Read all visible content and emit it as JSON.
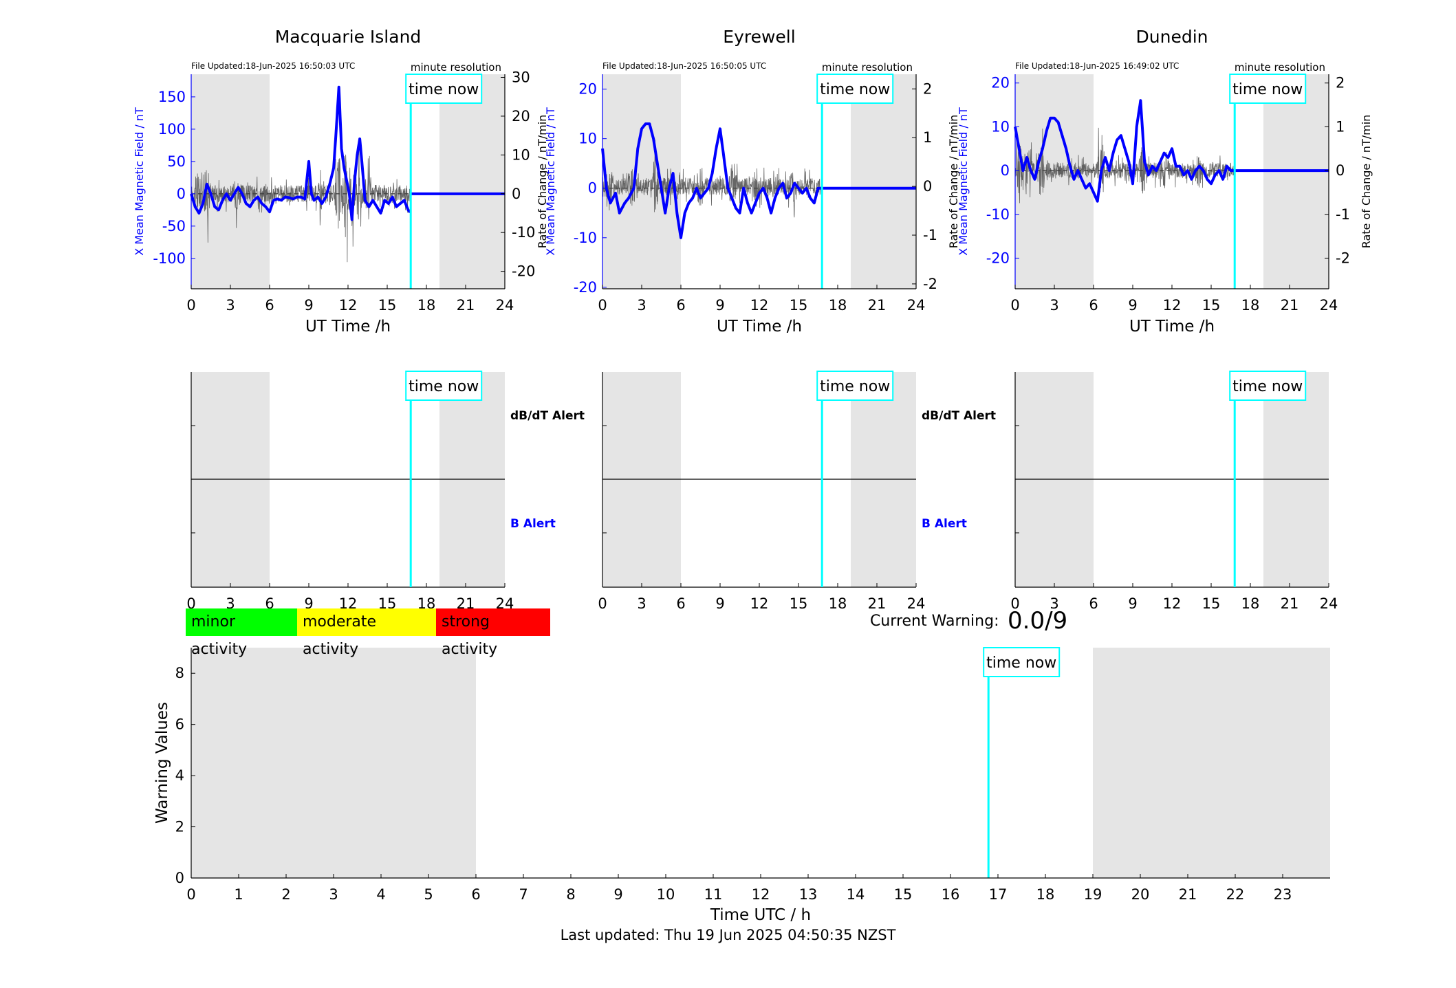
{
  "colors": {
    "field": "#0000ff",
    "rate": "#404040",
    "now": "#00ffff",
    "night": "#e5e5e5",
    "minor": "#00ff00",
    "moderate": "#ffff00",
    "strong": "#ff0000"
  },
  "labels": {
    "time_now": "time now",
    "dbdt_alert": "dB/dT Alert",
    "b_alert": "B Alert",
    "xlabel_station": "UT Time /h",
    "ylabel_left": "X Mean Magnetic Field / nT",
    "ylabel_right": "Rate of Change / nT/min",
    "resolution": "minute resolution"
  },
  "legend": {
    "minor": "minor activity",
    "moderate": "moderate activity",
    "strong": "strong activity"
  },
  "current_warning": {
    "label": "Current Warning:",
    "value": "0.0/9"
  },
  "last_updated": "Last updated: Thu 19 Jun 2025 04:50:35 NZST",
  "chart_data": [
    {
      "type": "line",
      "title": "Macquarie Island",
      "file_updated": "File Updated:18-Jun-2025 16:50:03 UTC",
      "xlabel": "UT Time /h",
      "xlim": [
        0,
        24
      ],
      "xticks": [
        0,
        3,
        6,
        9,
        12,
        15,
        18,
        21,
        24
      ],
      "ylim_left": [
        -147,
        185
      ],
      "yticks_left": [
        -100,
        -50,
        0,
        50,
        100,
        150
      ],
      "ylim_right": [
        -24.5,
        30.8
      ],
      "yticks_right": [
        -20,
        -10,
        0,
        10,
        20,
        30
      ],
      "night_bands": [
        [
          0,
          6
        ],
        [
          19,
          24
        ]
      ],
      "time_now": 16.8,
      "rate_amplitude": 5,
      "rate_peaks": [
        [
          0.5,
          9
        ],
        [
          1.2,
          11
        ],
        [
          3.5,
          5
        ],
        [
          10,
          6
        ],
        [
          11.3,
          18
        ],
        [
          11.8,
          22
        ],
        [
          12.3,
          15
        ],
        [
          12.8,
          12
        ],
        [
          13.5,
          8
        ]
      ],
      "series": [
        {
          "name": "X Mean Magnetic Field / nT",
          "x": [
            0,
            0.3,
            0.6,
            0.9,
            1.2,
            1.5,
            1.8,
            2.1,
            2.4,
            2.7,
            3.0,
            3.3,
            3.6,
            3.9,
            4.2,
            4.5,
            4.8,
            5.1,
            5.4,
            5.7,
            6.0,
            6.3,
            6.6,
            6.9,
            7.2,
            7.5,
            7.8,
            8.1,
            8.4,
            8.7,
            9.0,
            9.2,
            9.4,
            9.7,
            10.0,
            10.3,
            10.6,
            10.9,
            11.1,
            11.3,
            11.5,
            11.7,
            11.9,
            12.1,
            12.3,
            12.5,
            12.7,
            12.9,
            13.1,
            13.3,
            13.6,
            13.9,
            14.2,
            14.5,
            14.8,
            15.1,
            15.4,
            15.7,
            16.0,
            16.3,
            16.6,
            16.8,
            17.0,
            19.0,
            24.0
          ],
          "values": [
            0,
            -20,
            -30,
            -15,
            15,
            0,
            -20,
            -25,
            -10,
            0,
            -10,
            0,
            10,
            0,
            -15,
            -20,
            -10,
            -5,
            -15,
            -20,
            -28,
            -10,
            -8,
            -10,
            -5,
            -6,
            -8,
            -5,
            -5,
            -8,
            50,
            0,
            -10,
            -5,
            -15,
            -5,
            15,
            40,
            100,
            165,
            70,
            40,
            20,
            0,
            -40,
            20,
            60,
            85,
            40,
            -10,
            -20,
            -10,
            -20,
            -30,
            -10,
            -15,
            -5,
            -20,
            -15,
            -10,
            -25,
            -30,
            0,
            0,
            0
          ]
        }
      ]
    },
    {
      "type": "line",
      "title": "Eyrewell",
      "file_updated": "File Updated:18-Jun-2025 16:50:05 UTC",
      "xlabel": "UT Time /h",
      "xlim": [
        0,
        24
      ],
      "xticks": [
        0,
        3,
        6,
        9,
        12,
        15,
        18,
        21,
        24
      ],
      "ylim_left": [
        -20.3,
        23
      ],
      "yticks_left": [
        -20,
        -10,
        0,
        10,
        20
      ],
      "ylim_right": [
        -2.1,
        2.3
      ],
      "yticks_right": [
        -2,
        -1,
        0,
        1,
        2
      ],
      "night_bands": [
        [
          0,
          6
        ],
        [
          19,
          24
        ]
      ],
      "time_now": 16.8,
      "rate_amplitude": 0.4,
      "rate_peaks": [
        [
          0.5,
          1.0
        ],
        [
          2.2,
          0.7
        ],
        [
          4,
          0.9
        ],
        [
          7.5,
          0.7
        ],
        [
          10,
          0.9
        ],
        [
          11.8,
          0.6
        ],
        [
          14.5,
          0.5
        ]
      ],
      "series": [
        {
          "name": "X Mean Magnetic Field / nT",
          "x": [
            0,
            0.3,
            0.6,
            1.0,
            1.3,
            1.7,
            2.0,
            2.4,
            2.7,
            3.0,
            3.3,
            3.6,
            3.9,
            4.2,
            4.5,
            4.8,
            5.1,
            5.4,
            5.7,
            6.0,
            6.3,
            6.6,
            6.9,
            7.2,
            7.5,
            7.8,
            8.1,
            8.4,
            8.7,
            9.0,
            9.3,
            9.6,
            9.9,
            10.2,
            10.5,
            10.8,
            11.1,
            11.4,
            11.7,
            12.0,
            12.3,
            12.6,
            12.9,
            13.2,
            13.5,
            13.8,
            14.1,
            14.4,
            14.7,
            15.0,
            15.3,
            15.6,
            15.9,
            16.2,
            16.5,
            16.8,
            17.0,
            19.0,
            24.0
          ],
          "values": [
            8,
            0,
            -3,
            -1,
            -5,
            -3,
            -2,
            0,
            8,
            12,
            13,
            13,
            10,
            5,
            0,
            -5,
            0,
            3,
            -5,
            -10,
            -5,
            -3,
            -2,
            0,
            -2,
            -1,
            0,
            3,
            8,
            12,
            6,
            0,
            -2,
            -4,
            -5,
            0,
            -3,
            -5,
            -3,
            -1,
            0,
            -2,
            -5,
            -2,
            0,
            1,
            -2,
            -1,
            1,
            0,
            -1,
            0,
            -2,
            -3,
            0,
            0,
            0,
            0,
            0
          ]
        }
      ]
    },
    {
      "type": "line",
      "title": "Dunedin",
      "file_updated": "File Updated:18-Jun-2025 16:49:02 UTC",
      "xlabel": "UT Time /h",
      "xlim": [
        0,
        24
      ],
      "xticks": [
        0,
        3,
        6,
        9,
        12,
        15,
        18,
        21,
        24
      ],
      "ylim_left": [
        -27,
        22
      ],
      "yticks_left": [
        -20,
        -10,
        0,
        10,
        20
      ],
      "ylim_right": [
        -2.7,
        2.2
      ],
      "yticks_right": [
        -2,
        -1,
        0,
        1,
        2
      ],
      "night_bands": [
        [
          0,
          6
        ],
        [
          19,
          24
        ]
      ],
      "time_now": 16.8,
      "rate_amplitude": 0.4,
      "rate_peaks": [
        [
          0.4,
          1.6
        ],
        [
          1.0,
          0.9
        ],
        [
          2.0,
          1.2
        ],
        [
          6.5,
          0.9
        ],
        [
          9.8,
          1.2
        ],
        [
          11.5,
          0.7
        ],
        [
          14,
          0.6
        ]
      ],
      "series": [
        {
          "name": "X Mean Magnetic Field / nT",
          "x": [
            0,
            0.3,
            0.6,
            0.9,
            1.2,
            1.5,
            1.8,
            2.1,
            2.4,
            2.7,
            3.0,
            3.3,
            3.6,
            3.9,
            4.2,
            4.5,
            4.8,
            5.1,
            5.4,
            5.7,
            6.0,
            6.3,
            6.6,
            6.9,
            7.2,
            7.5,
            7.8,
            8.1,
            8.4,
            8.7,
            9.0,
            9.3,
            9.6,
            9.9,
            10.2,
            10.5,
            10.8,
            11.1,
            11.4,
            11.7,
            12.0,
            12.3,
            12.6,
            12.9,
            13.2,
            13.5,
            13.8,
            14.1,
            14.4,
            14.7,
            15.0,
            15.3,
            15.6,
            15.9,
            16.2,
            16.5,
            16.8,
            17.0,
            19.0,
            24.0
          ],
          "values": [
            10,
            5,
            0,
            3,
            0,
            -2,
            2,
            5,
            9,
            12,
            12,
            11,
            8,
            5,
            1,
            -2,
            0,
            -2,
            -4,
            -3,
            -5,
            -7,
            0,
            3,
            0,
            4,
            7,
            8,
            5,
            2,
            -3,
            10,
            16,
            2,
            -1,
            1,
            0,
            2,
            4,
            3,
            5,
            1,
            1,
            -1,
            0,
            -2,
            0,
            1,
            0,
            -2,
            -3,
            -1,
            0,
            -2,
            1,
            0,
            0,
            0,
            0,
            0
          ]
        }
      ]
    },
    {
      "type": "line",
      "title": "",
      "xlabel": "Time UTC / h",
      "ylabel": "Warning Values",
      "xlim": [
        0,
        24
      ],
      "xticks": [
        0,
        1,
        2,
        3,
        4,
        5,
        6,
        7,
        8,
        9,
        10,
        11,
        12,
        13,
        14,
        15,
        16,
        17,
        18,
        19,
        20,
        21,
        22,
        23
      ],
      "ylim": [
        0,
        9
      ],
      "yticks": [
        0,
        2,
        4,
        6,
        8
      ],
      "night_bands": [
        [
          0,
          6
        ],
        [
          19,
          24
        ]
      ],
      "time_now": 16.8,
      "series": [
        {
          "name": "",
          "x": [],
          "values": []
        }
      ]
    }
  ]
}
